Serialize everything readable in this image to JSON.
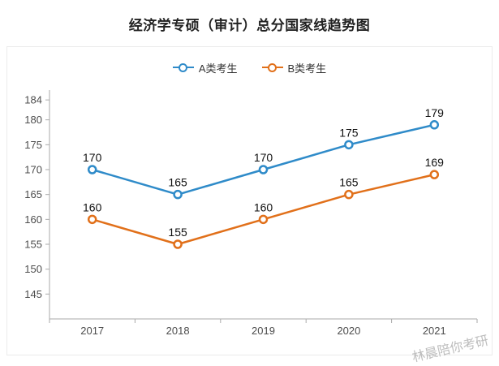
{
  "page": {
    "title": "经济学专硕（审计）总分国家线趋势图",
    "watermark": "林晨陪你考研"
  },
  "chart_data": {
    "type": "line",
    "title": "经济学专硕（审计）总分国家线趋势图",
    "categories": [
      "2017",
      "2018",
      "2019",
      "2020",
      "2021"
    ],
    "series": [
      {
        "name": "A类考生",
        "values": [
          170,
          165,
          170,
          175,
          179
        ],
        "color": "#2f8bc9"
      },
      {
        "name": "B类考生",
        "values": [
          160,
          155,
          160,
          165,
          169
        ],
        "color": "#e1701a"
      }
    ],
    "y_ticks": [
      184,
      180,
      175,
      170,
      165,
      160,
      155,
      150,
      145
    ],
    "ylim": [
      140,
      185
    ],
    "xlabel": "",
    "ylabel": "",
    "legend_position": "top",
    "grid": false,
    "point_style": "hollow-circle",
    "data_labels": true
  }
}
